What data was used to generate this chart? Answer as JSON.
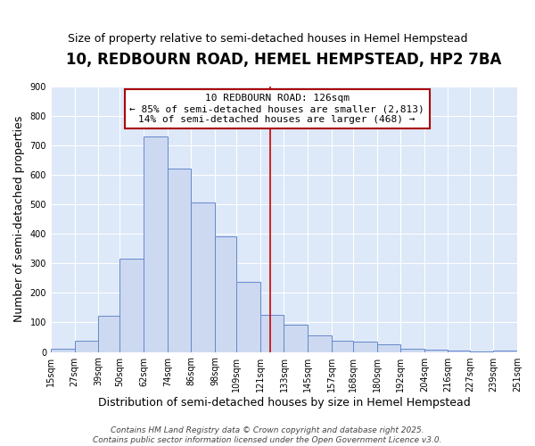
{
  "title": "10, REDBOURN ROAD, HEMEL HEMPSTEAD, HP2 7BA",
  "subtitle": "Size of property relative to semi-detached houses in Hemel Hempstead",
  "xlabel": "Distribution of semi-detached houses by size in Hemel Hempstead",
  "ylabel": "Number of semi-detached properties",
  "bar_left_edges": [
    15,
    27,
    39,
    50,
    62,
    74,
    86,
    98,
    109,
    121,
    133,
    145,
    157,
    168,
    180,
    192,
    204,
    216,
    227,
    239
  ],
  "bar_widths": [
    12,
    12,
    11,
    12,
    12,
    12,
    12,
    11,
    12,
    12,
    12,
    12,
    11,
    12,
    12,
    12,
    12,
    11,
    12,
    12
  ],
  "bar_heights": [
    10,
    37,
    122,
    315,
    730,
    620,
    507,
    390,
    238,
    125,
    93,
    55,
    37,
    35,
    25,
    10,
    7,
    5,
    3,
    5
  ],
  "bar_facecolor": "#ccd9f0",
  "bar_edgecolor": "#6688cc",
  "xlim": [
    15,
    251
  ],
  "ylim": [
    0,
    900
  ],
  "yticks": [
    0,
    100,
    200,
    300,
    400,
    500,
    600,
    700,
    800,
    900
  ],
  "xtick_labels": [
    "15sqm",
    "27sqm",
    "39sqm",
    "50sqm",
    "62sqm",
    "74sqm",
    "86sqm",
    "98sqm",
    "109sqm",
    "121sqm",
    "133sqm",
    "145sqm",
    "157sqm",
    "168sqm",
    "180sqm",
    "192sqm",
    "204sqm",
    "216sqm",
    "227sqm",
    "239sqm",
    "251sqm"
  ],
  "xtick_positions": [
    15,
    27,
    39,
    50,
    62,
    74,
    86,
    98,
    109,
    121,
    133,
    145,
    157,
    168,
    180,
    192,
    204,
    216,
    227,
    239,
    251
  ],
  "property_line_x": 126,
  "annotation_title": "10 REDBOURN ROAD: 126sqm",
  "annotation_line1": "← 85% of semi-detached houses are smaller (2,813)",
  "annotation_line2": "14% of semi-detached houses are larger (468) →",
  "annotation_box_color": "#aa0000",
  "footer1": "Contains HM Land Registry data © Crown copyright and database right 2025.",
  "footer2": "Contains public sector information licensed under the Open Government Licence v3.0.",
  "fig_bg_color": "#ffffff",
  "plot_bg_color": "#dde8f8",
  "grid_color": "#ffffff",
  "title_fontsize": 12,
  "subtitle_fontsize": 9,
  "axis_label_fontsize": 9,
  "tick_fontsize": 7,
  "annotation_fontsize": 8,
  "footer_fontsize": 6.5
}
